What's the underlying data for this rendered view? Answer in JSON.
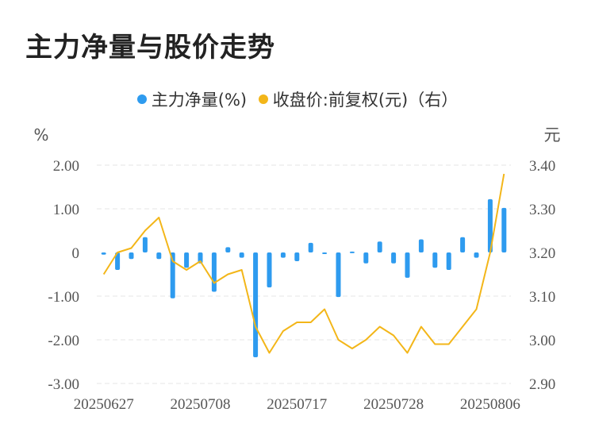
{
  "title": "主力净量与股价走势",
  "legend": {
    "left_label": "主力净量(%)",
    "right_label": "收盘价:前复权(元)（右）"
  },
  "colors": {
    "bar": "#2E9BEF",
    "line": "#F3B619",
    "grid": "#E6E6E6",
    "text": "#555555"
  },
  "chart_data": {
    "type": "bar",
    "left_axis_unit": "%",
    "right_axis_unit": "元",
    "y_left_ticks": [
      "2.00",
      "1.00",
      "0",
      "-1.00",
      "-2.00",
      "-3.00"
    ],
    "y_right_ticks": [
      "3.40",
      "3.30",
      "3.20",
      "3.10",
      "3.00",
      "2.90"
    ],
    "ylim_left": [
      -3,
      2
    ],
    "ylim_right": [
      2.9,
      3.4
    ],
    "x_tick_labels": [
      "20250627",
      "20250708",
      "20250717",
      "20250728",
      "20250806"
    ],
    "x_tick_indices": [
      0,
      7,
      14,
      21,
      28
    ],
    "grid": true,
    "legend_position": "top-center",
    "series": [
      {
        "name": "主力净量(%)",
        "type": "bar",
        "axis": "left",
        "values": [
          -0.05,
          -0.4,
          -0.15,
          0.35,
          -0.15,
          -1.05,
          -0.35,
          -0.25,
          -0.9,
          0.12,
          -0.12,
          -2.4,
          -0.8,
          -0.12,
          -0.2,
          0.22,
          -0.02,
          -1.02,
          0.02,
          -0.25,
          0.25,
          -0.25,
          -0.58,
          0.3,
          -0.35,
          -0.4,
          0.35,
          -0.12,
          1.22,
          1.02
        ]
      },
      {
        "name": "收盘价:前复权(元)（右）",
        "type": "line",
        "axis": "right",
        "values": [
          3.15,
          3.2,
          3.21,
          3.25,
          3.28,
          3.18,
          3.16,
          3.18,
          3.13,
          3.15,
          3.16,
          3.03,
          2.97,
          3.02,
          3.04,
          3.04,
          3.07,
          3.0,
          2.98,
          3.0,
          3.03,
          3.01,
          2.97,
          3.03,
          2.99,
          2.99,
          3.03,
          3.07,
          3.2,
          3.38
        ]
      }
    ]
  }
}
